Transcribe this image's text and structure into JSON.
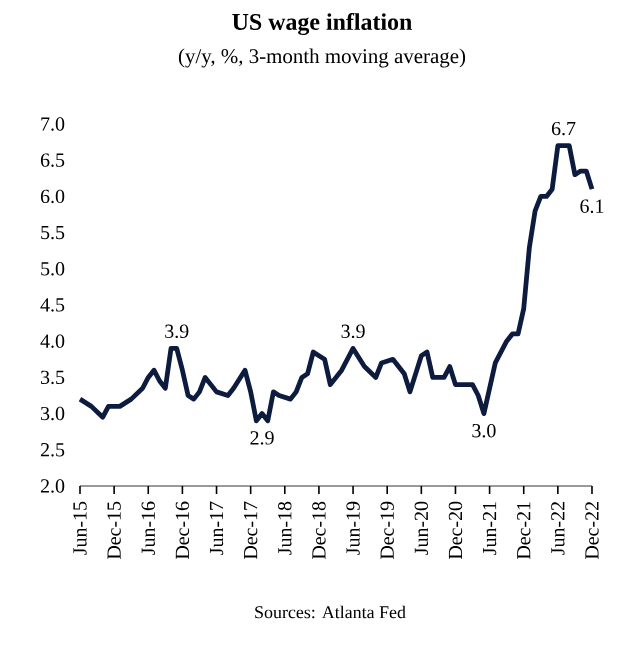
{
  "chart_data": {
    "type": "line",
    "title": "US wage inflation",
    "subtitle": "(y/y, %, 3-month moving average)",
    "x": [
      "2015-06",
      "2015-08",
      "2015-10",
      "2015-11",
      "2016-01",
      "2016-03",
      "2016-05",
      "2016-06",
      "2016-07",
      "2016-08",
      "2016-09",
      "2016-10",
      "2016-11",
      "2016-12",
      "2017-01",
      "2017-02",
      "2017-03",
      "2017-04",
      "2017-05",
      "2017-06",
      "2017-08",
      "2017-09",
      "2017-11",
      "2017-12",
      "2018-01",
      "2018-02",
      "2018-03",
      "2018-04",
      "2018-05",
      "2018-07",
      "2018-08",
      "2018-09",
      "2018-10",
      "2018-11",
      "2018-12",
      "2019-01",
      "2019-02",
      "2019-04",
      "2019-06",
      "2019-08",
      "2019-10",
      "2019-11",
      "2020-01",
      "2020-03",
      "2020-04",
      "2020-06",
      "2020-07",
      "2020-08",
      "2020-10",
      "2020-11",
      "2020-12",
      "2021-03",
      "2021-04",
      "2021-05",
      "2021-07",
      "2021-09",
      "2021-10",
      "2021-11",
      "2021-12",
      "2022-01",
      "2022-02",
      "2022-03",
      "2022-04",
      "2022-05",
      "2022-06",
      "2022-07",
      "2022-08",
      "2022-09",
      "2022-10",
      "2022-11",
      "2022-12"
    ],
    "series": [
      {
        "color": "#0d1b3e",
        "values": [
          3.2,
          3.1,
          2.95,
          3.1,
          3.1,
          3.2,
          3.35,
          3.5,
          3.6,
          3.45,
          3.35,
          3.9,
          3.9,
          3.6,
          3.25,
          3.2,
          3.3,
          3.5,
          3.4,
          3.3,
          3.25,
          3.35,
          3.6,
          3.3,
          2.9,
          3.0,
          2.9,
          3.3,
          3.25,
          3.2,
          3.3,
          3.5,
          3.55,
          3.85,
          3.8,
          3.75,
          3.4,
          3.6,
          3.9,
          3.65,
          3.5,
          3.7,
          3.75,
          3.55,
          3.3,
          3.8,
          3.85,
          3.5,
          3.5,
          3.65,
          3.4,
          3.4,
          3.25,
          3.0,
          3.7,
          4.0,
          4.1,
          4.1,
          4.45,
          5.3,
          5.8,
          6.0,
          6.0,
          6.1,
          6.7,
          6.7,
          6.7,
          6.3,
          6.35,
          6.35,
          6.1
        ]
      }
    ],
    "xlim": [
      "2015-06",
      "2022-12"
    ],
    "xticks": [
      {
        "value": "2015-06",
        "label": "Jun-15"
      },
      {
        "value": "2015-12",
        "label": "Dec-15"
      },
      {
        "value": "2016-06",
        "label": "Jun-16"
      },
      {
        "value": "2016-12",
        "label": "Dec-16"
      },
      {
        "value": "2017-06",
        "label": "Jun-17"
      },
      {
        "value": "2017-12",
        "label": "Dec-17"
      },
      {
        "value": "2018-06",
        "label": "Jun-18"
      },
      {
        "value": "2018-12",
        "label": "Dec-18"
      },
      {
        "value": "2019-06",
        "label": "Jun-19"
      },
      {
        "value": "2019-12",
        "label": "Dec-19"
      },
      {
        "value": "2020-06",
        "label": "Jun-20"
      },
      {
        "value": "2020-12",
        "label": "Dec-20"
      },
      {
        "value": "2021-06",
        "label": "Jun-21"
      },
      {
        "value": "2021-12",
        "label": "Dec-21"
      },
      {
        "value": "2022-06",
        "label": "Jun-22"
      },
      {
        "value": "2022-12",
        "label": "Dec-22"
      }
    ],
    "ylim": [
      2,
      7
    ],
    "yticks": [
      {
        "value": 2,
        "label": "2.0"
      },
      {
        "value": 2.5,
        "label": "2.5"
      },
      {
        "value": 3,
        "label": "3.0"
      },
      {
        "value": 3.5,
        "label": "3.5"
      },
      {
        "value": 4,
        "label": "4.0"
      },
      {
        "value": 4.5,
        "label": "4.5"
      },
      {
        "value": 5,
        "label": "5.0"
      },
      {
        "value": 5.5,
        "label": "5.5"
      },
      {
        "value": 6,
        "label": "6.0"
      },
      {
        "value": 6.5,
        "label": "6.5"
      },
      {
        "value": 7,
        "label": "7.0"
      }
    ],
    "annotations": [
      {
        "text": "3.9",
        "x": "2016-11",
        "y": 3.9
      },
      {
        "text": "2.9",
        "x": "2018-02",
        "y": 2.9
      },
      {
        "text": "3.9",
        "x": "2019-06",
        "y": 3.9
      },
      {
        "text": "3.0",
        "x": "2021-05",
        "y": 3.0
      },
      {
        "text": "6.7",
        "x": "2022-07",
        "y": 6.7
      },
      {
        "text": "6.1",
        "x": "2022-12",
        "y": 6.1
      },
      "Sources: Atlanta Fed"
    ]
  }
}
